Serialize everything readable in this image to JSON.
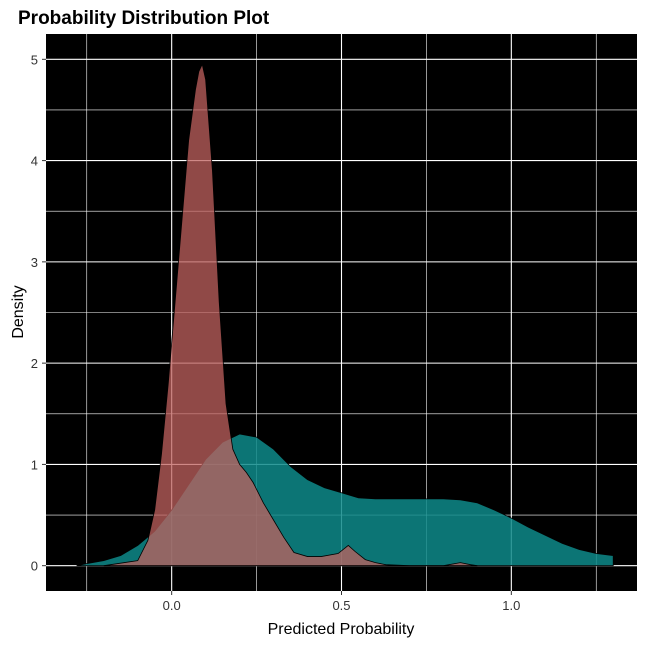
{
  "chart_data": {
    "type": "area",
    "title": "Probability Distribution Plot",
    "xlabel": "Predicted Probability",
    "ylabel": "Density",
    "xlim": [
      -0.37,
      1.37
    ],
    "ylim": [
      -0.25,
      5.25
    ],
    "x_ticks": [
      0.0,
      0.5,
      1.0
    ],
    "x_tick_labels": [
      "0.0",
      "0.5",
      "1.0"
    ],
    "y_ticks": [
      0,
      1,
      2,
      3,
      4,
      5
    ],
    "y_tick_labels": [
      "0",
      "1",
      "2",
      "3",
      "4",
      "5"
    ],
    "grid": true,
    "background": "#000000",
    "gridline_color": "#ffffff",
    "legend": "none",
    "series": [
      {
        "fill": "#0e8a8a",
        "opacity": 0.85,
        "points": [
          [
            -0.28,
            0.0
          ],
          [
            -0.25,
            0.02
          ],
          [
            -0.2,
            0.05
          ],
          [
            -0.15,
            0.1
          ],
          [
            -0.1,
            0.2
          ],
          [
            -0.05,
            0.34
          ],
          [
            0.0,
            0.55
          ],
          [
            0.05,
            0.8
          ],
          [
            0.1,
            1.05
          ],
          [
            0.15,
            1.22
          ],
          [
            0.2,
            1.3
          ],
          [
            0.25,
            1.27
          ],
          [
            0.3,
            1.15
          ],
          [
            0.35,
            0.98
          ],
          [
            0.4,
            0.85
          ],
          [
            0.45,
            0.77
          ],
          [
            0.5,
            0.72
          ],
          [
            0.55,
            0.67
          ],
          [
            0.6,
            0.66
          ],
          [
            0.7,
            0.66
          ],
          [
            0.8,
            0.66
          ],
          [
            0.85,
            0.65
          ],
          [
            0.9,
            0.62
          ],
          [
            0.95,
            0.55
          ],
          [
            1.0,
            0.47
          ],
          [
            1.05,
            0.38
          ],
          [
            1.1,
            0.3
          ],
          [
            1.15,
            0.22
          ],
          [
            1.2,
            0.16
          ],
          [
            1.25,
            0.12
          ],
          [
            1.3,
            0.1
          ],
          [
            1.3,
            0.0
          ]
        ]
      },
      {
        "fill": "#c0625f",
        "opacity": 0.75,
        "points": [
          [
            -0.2,
            0.0
          ],
          [
            -0.1,
            0.05
          ],
          [
            -0.07,
            0.25
          ],
          [
            -0.05,
            0.55
          ],
          [
            -0.03,
            1.1
          ],
          [
            -0.01,
            1.8
          ],
          [
            0.01,
            2.6
          ],
          [
            0.03,
            3.4
          ],
          [
            0.05,
            4.2
          ],
          [
            0.07,
            4.7
          ],
          [
            0.08,
            4.88
          ],
          [
            0.09,
            4.95
          ],
          [
            0.1,
            4.8
          ],
          [
            0.12,
            3.9
          ],
          [
            0.14,
            2.6
          ],
          [
            0.16,
            1.6
          ],
          [
            0.18,
            1.15
          ],
          [
            0.2,
            1.0
          ],
          [
            0.22,
            0.92
          ],
          [
            0.24,
            0.82
          ],
          [
            0.27,
            0.62
          ],
          [
            0.3,
            0.45
          ],
          [
            0.33,
            0.28
          ],
          [
            0.36,
            0.13
          ],
          [
            0.4,
            0.09
          ],
          [
            0.44,
            0.09
          ],
          [
            0.49,
            0.12
          ],
          [
            0.52,
            0.2
          ],
          [
            0.54,
            0.14
          ],
          [
            0.57,
            0.06
          ],
          [
            0.6,
            0.03
          ],
          [
            0.63,
            0.01
          ],
          [
            0.7,
            0.0
          ],
          [
            0.8,
            0.0
          ],
          [
            0.85,
            0.03
          ],
          [
            0.88,
            0.01
          ],
          [
            0.9,
            0.0
          ]
        ]
      }
    ]
  }
}
